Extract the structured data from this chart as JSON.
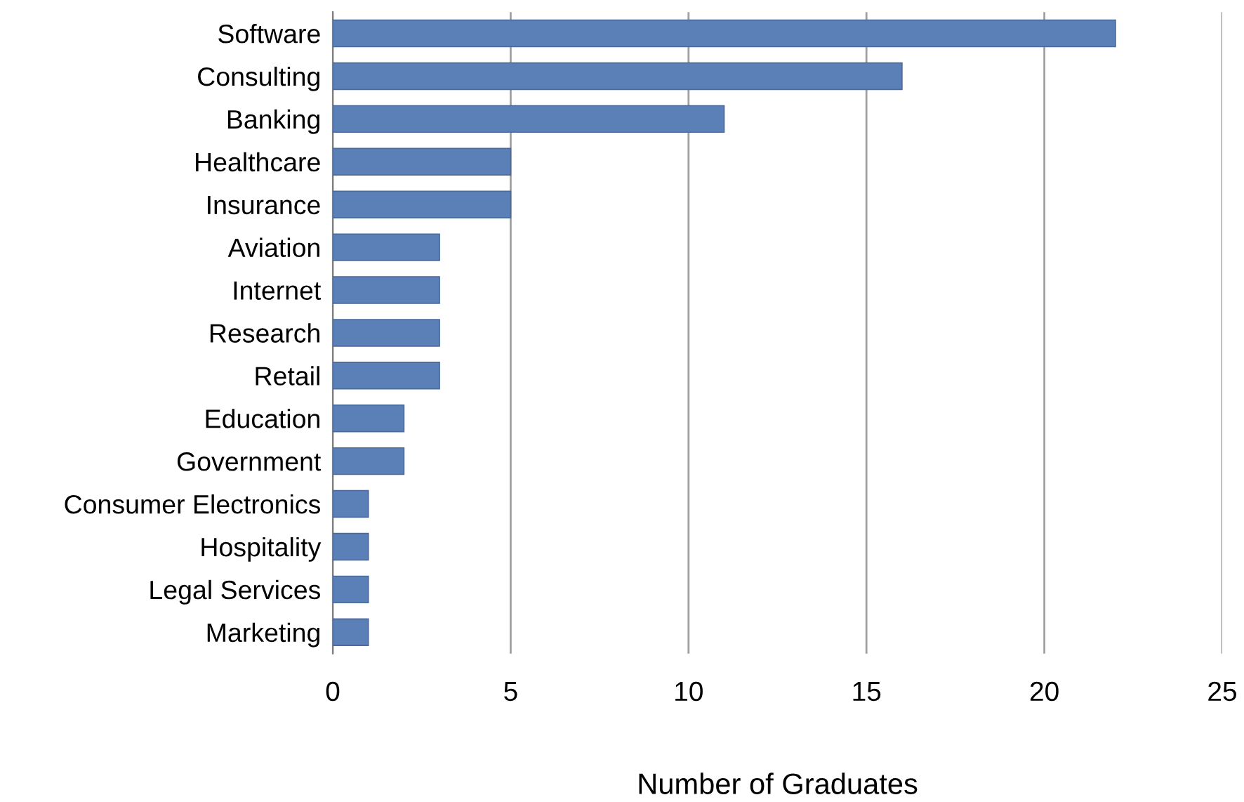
{
  "chart_data": {
    "type": "bar",
    "orientation": "horizontal",
    "xlabel": "Number of Graduates",
    "categories": [
      "Software",
      "Consulting",
      "Banking",
      "Healthcare",
      "Insurance",
      "Aviation",
      "Internet",
      "Research",
      "Retail",
      "Education",
      "Government",
      "Consumer Electronics",
      "Hospitality",
      "Legal Services",
      "Marketing"
    ],
    "values": [
      22,
      16,
      11,
      5,
      5,
      3,
      3,
      3,
      3,
      2,
      2,
      1,
      1,
      1,
      1
    ],
    "color": "#5b80b8",
    "xlim": [
      0,
      25
    ],
    "xticks": [
      0,
      5,
      10,
      15,
      20,
      25
    ],
    "grid": "x",
    "legend": false
  }
}
